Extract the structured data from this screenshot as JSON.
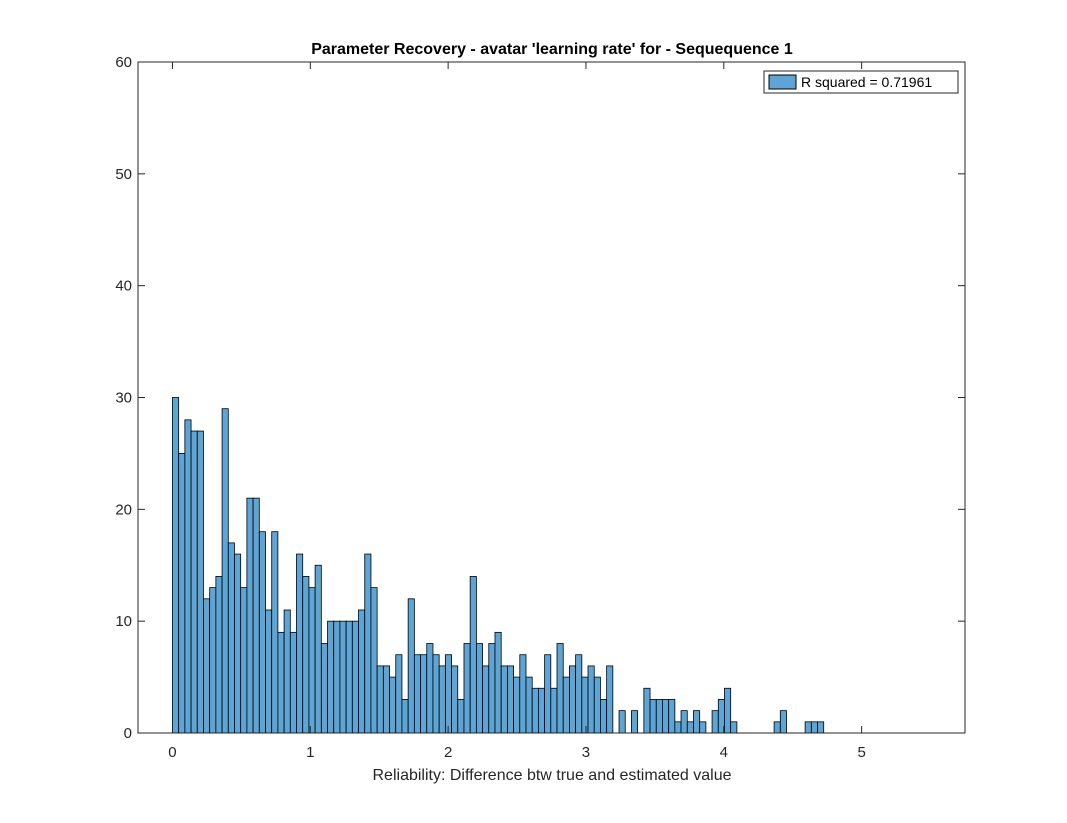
{
  "chart_data": {
    "type": "bar",
    "title": "Parameter Recovery - avatar 'learning rate' for - Sequequence 1",
    "xlabel": "Reliability: Difference btw true and estimated value",
    "ylabel": "",
    "xlim": [
      -0.25,
      5.75
    ],
    "ylim": [
      0,
      60
    ],
    "xticks": [
      0,
      1,
      2,
      3,
      4,
      5
    ],
    "yticks": [
      0,
      10,
      20,
      30,
      40,
      50,
      60
    ],
    "bin_start": 0.0,
    "bin_width": 0.045,
    "values": [
      30,
      25,
      28,
      27,
      27,
      12,
      13,
      14,
      29,
      17,
      16,
      13,
      21,
      21,
      18,
      11,
      18,
      9,
      11,
      9,
      16,
      14,
      13,
      15,
      8,
      10,
      10,
      10,
      10,
      10,
      11,
      16,
      13,
      6,
      6,
      5,
      7,
      3,
      12,
      7,
      7,
      8,
      7,
      6,
      7,
      6,
      3,
      8,
      14,
      8,
      6,
      8,
      9,
      6,
      6,
      5,
      7,
      5,
      4,
      4,
      7,
      4,
      8,
      5,
      6,
      7,
      5,
      6,
      5,
      3,
      6,
      0,
      2,
      0,
      2,
      0,
      4,
      3,
      3,
      3,
      3,
      1,
      2,
      1,
      2,
      1,
      0,
      2,
      3,
      4,
      1,
      0,
      0,
      0,
      0,
      0,
      0,
      1,
      2,
      0,
      0,
      0,
      1,
      1,
      1
    ],
    "series": [
      {
        "name": "R squared = 0.71961",
        "color": "#5ea5d6"
      }
    ],
    "grid": false,
    "legend_position": "top-right"
  }
}
